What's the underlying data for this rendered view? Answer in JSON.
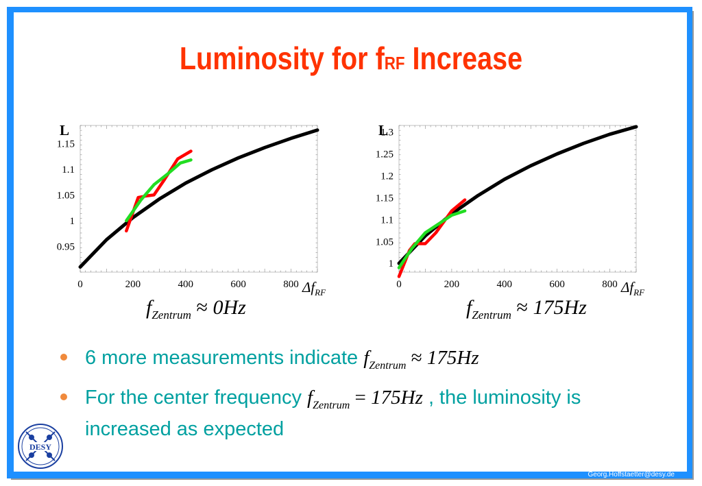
{
  "slide": {
    "title_main": "Luminosity for f",
    "title_sub": "RF",
    "title_end": " Increase",
    "footer": "Georg.Hoffstaetter@desy.de",
    "logo_text": "DESY"
  },
  "captions": {
    "left": {
      "f": "f",
      "sub": "Zentrum",
      "rel": " ≈ ",
      "val": "0Hz"
    },
    "right": {
      "f": "f",
      "sub": "Zentrum",
      "rel": " ≈ ",
      "val": "175Hz"
    }
  },
  "bullets": [
    {
      "text": "6 more measurements indicate ",
      "f": "f",
      "sub": "Zentrum",
      "rel": " ≈ ",
      "val": "175Hz",
      "after": ""
    },
    {
      "text": "For the center frequency ",
      "f": "f",
      "sub": "Zentrum",
      "rel": " = ",
      "val": "175Hz",
      "after": " , the luminosity is increased as expected"
    }
  ],
  "colors": {
    "title": "#ff3300",
    "bullet_text": "#00a0a0",
    "bullet_dot": "#f08a3c",
    "frame": "#1e90ff",
    "theory": "#000000",
    "measured": "#ff0000",
    "fit": "#22dd22"
  },
  "chart_data": [
    {
      "type": "line",
      "ylabel": "L",
      "xlabel": "ΔfRF",
      "xlim": [
        0,
        900
      ],
      "ylim": [
        0.9,
        1.185
      ],
      "xticks": [
        0,
        200,
        400,
        600,
        800
      ],
      "yticks": [
        0.95,
        1,
        1.05,
        1.1,
        1.15
      ],
      "ytick_labels": [
        "0.95",
        "1",
        "1.05",
        "1.1",
        "1.15"
      ],
      "series": [
        {
          "color": "#000000",
          "x": [
            0,
            100,
            200,
            300,
            400,
            500,
            600,
            700,
            800,
            900
          ],
          "y": [
            0.91,
            0.963,
            1.006,
            1.042,
            1.073,
            1.099,
            1.122,
            1.142,
            1.16,
            1.176
          ]
        },
        {
          "color": "#ff0000",
          "x": [
            175,
            220,
            250,
            280,
            320,
            370,
            420
          ],
          "y": [
            0.98,
            1.045,
            1.048,
            1.05,
            1.08,
            1.12,
            1.135
          ]
        },
        {
          "color": "#22dd22",
          "x": [
            175,
            230,
            280,
            330,
            380,
            420
          ],
          "y": [
            1.0,
            1.04,
            1.07,
            1.09,
            1.112,
            1.118
          ]
        }
      ]
    },
    {
      "type": "line",
      "ylabel": "L",
      "xlabel": "ΔfRF",
      "xlim": [
        0,
        900
      ],
      "ylim": [
        0.98,
        1.315
      ],
      "xticks": [
        0,
        200,
        400,
        600,
        800
      ],
      "yticks": [
        1,
        1.05,
        1.1,
        1.15,
        1.2,
        1.25,
        1.3
      ],
      "ytick_labels": [
        "1",
        "1.05",
        "1.1",
        "1.15",
        "1.2",
        "1.25",
        "1.3"
      ],
      "series": [
        {
          "color": "#000000",
          "x": [
            0,
            100,
            200,
            300,
            400,
            500,
            600,
            700,
            800,
            900
          ],
          "y": [
            1.0,
            1.063,
            1.113,
            1.155,
            1.192,
            1.223,
            1.25,
            1.274,
            1.295,
            1.312
          ]
        },
        {
          "color": "#ff0000",
          "x": [
            0,
            40,
            60,
            100,
            140,
            200,
            250
          ],
          "y": [
            0.97,
            1.03,
            1.045,
            1.045,
            1.07,
            1.12,
            1.145
          ]
        },
        {
          "color": "#22dd22",
          "x": [
            0,
            50,
            100,
            150,
            200,
            250
          ],
          "y": [
            0.99,
            1.035,
            1.07,
            1.09,
            1.11,
            1.12
          ]
        }
      ]
    }
  ]
}
